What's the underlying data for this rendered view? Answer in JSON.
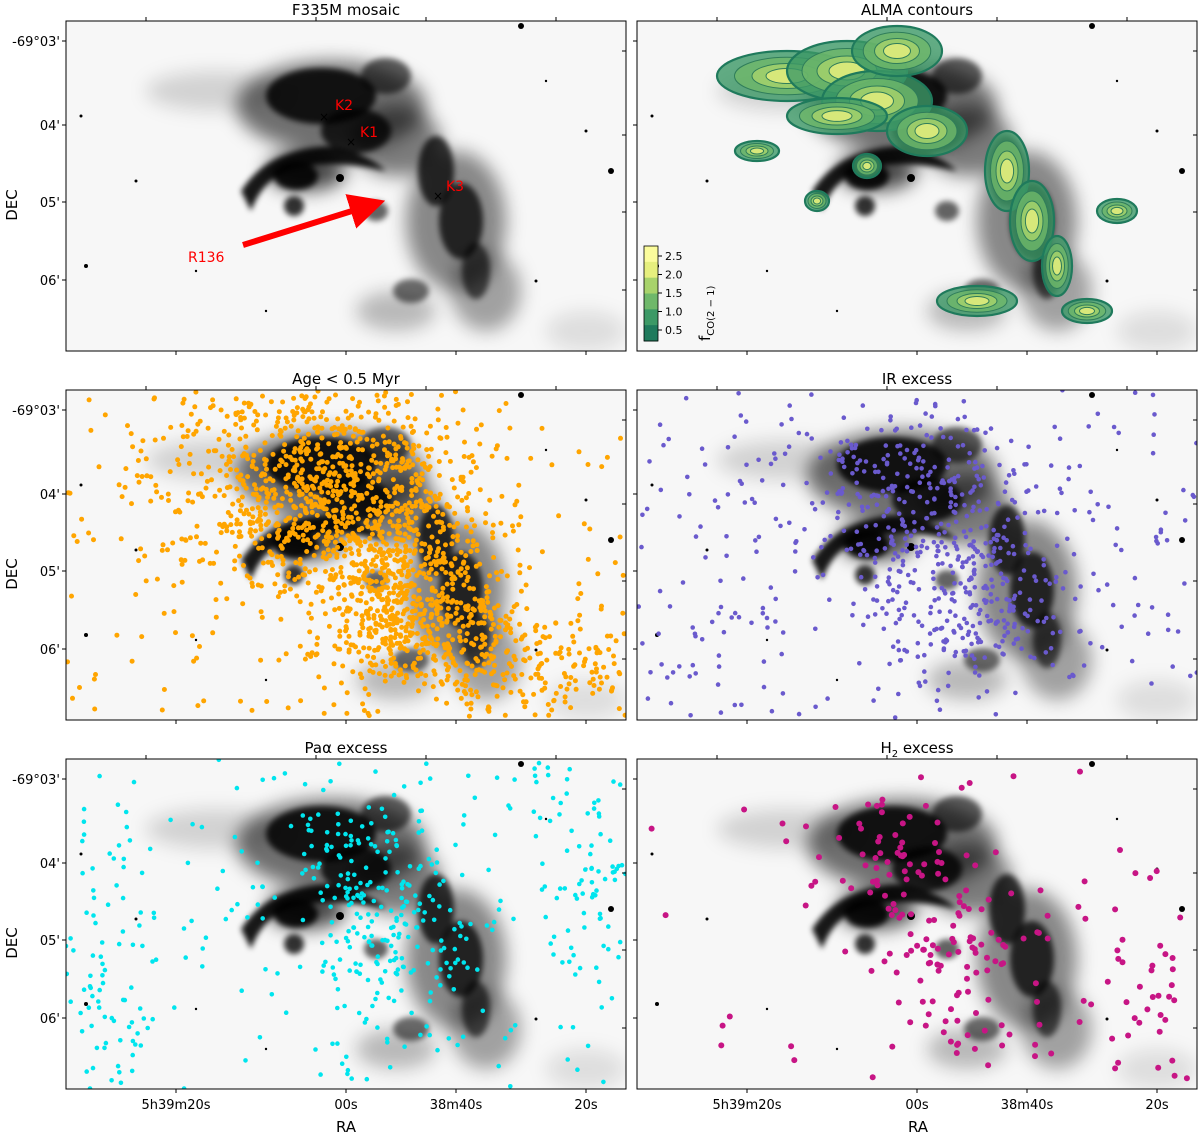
{
  "figure": {
    "x_axis_label": "RA",
    "y_axis_label": "DEC",
    "ra_ticks": [
      "5h39m20s",
      "00s",
      "38m40s",
      "20s"
    ],
    "dec_ticks": [
      "-69°03'",
      "04'",
      "05'",
      "06'"
    ]
  },
  "panels": [
    {
      "title": "F335M mosaic",
      "title_sub": ""
    },
    {
      "title": "ALMA contours",
      "title_sub": ""
    },
    {
      "title": "Age < 0.5 Myr",
      "title_sub": ""
    },
    {
      "title": "IR excess",
      "title_sub": ""
    },
    {
      "title": "Paα excess",
      "title_sub": ""
    },
    {
      "title": "H",
      "title_sub": "2",
      "title_suffix": " excess"
    }
  ],
  "annotations": {
    "r136_label": "R136",
    "sources": [
      {
        "label": "K2",
        "ra": "5h38m55.5s",
        "dec": "-69°04'00\""
      },
      {
        "label": "K1",
        "ra": "5h38m53.5s",
        "dec": "-69°04'15\""
      },
      {
        "label": "K3",
        "ra": "5h38m40.5s",
        "dec": "-69°04'53\""
      }
    ],
    "marker_color": "#ff0000"
  },
  "colorbar": {
    "label": "f",
    "label_sub": "CO(2 − 1)",
    "ticks": [
      "2.5",
      "2.0",
      "1.5",
      "1.0",
      "0.5"
    ],
    "colors": [
      "#1f7a5c",
      "#3c9966",
      "#6fb86a",
      "#a8d36b",
      "#e6ef7e",
      "#fbfc9c"
    ]
  },
  "point_colors": {
    "age": "#ffa500",
    "ir": "#6a5acd",
    "pa": "#00e5ee",
    "h2": "#c71585",
    "contour_outer": "#1f7a5c"
  },
  "chart_data": {
    "type": "scatter",
    "layout": "3x2 image panels sharing RA/DEC axes over an F335M grayscale mosaic",
    "xlabel": "RA",
    "ylabel": "DEC",
    "x_ticks": [
      "5h39m20s",
      "00s",
      "38m40s",
      "20s"
    ],
    "y_ticks": [
      "-69°03'",
      "04'",
      "05'",
      "06'"
    ],
    "series": [
      {
        "name": "Age < 0.5 Myr",
        "color": "#ffa500"
      },
      {
        "name": "IR excess",
        "color": "#6a5acd"
      },
      {
        "name": "Paα excess",
        "color": "#00e5ee"
      },
      {
        "name": "H2 excess",
        "color": "#c71585"
      }
    ],
    "contours": {
      "quantity": "fCO(2-1)",
      "levels": [
        0.5,
        1.0,
        1.5,
        2.0,
        2.5
      ]
    }
  }
}
